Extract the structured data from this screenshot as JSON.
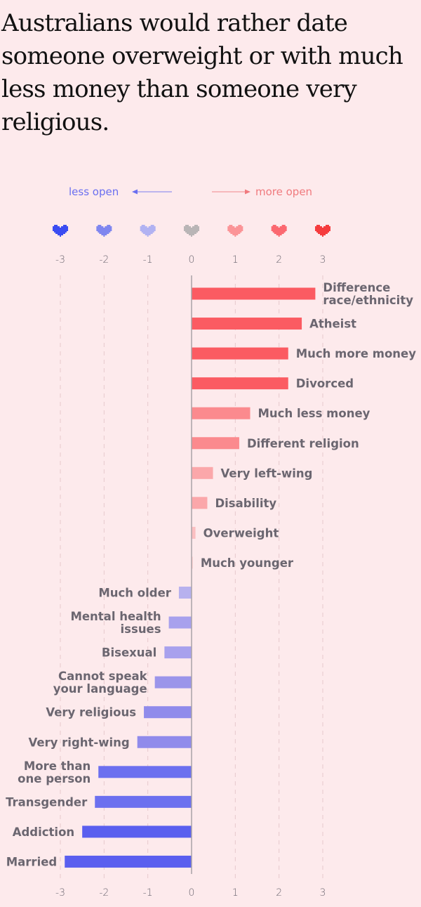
{
  "title": "Australians would rather date someone overweight or with much less money than someone very religious.",
  "legend": {
    "less_open": "less open",
    "more_open": "more open",
    "less_color": "#6a6ff0",
    "more_color": "#f07a7e"
  },
  "hearts": [
    {
      "value": -3,
      "color": "#3a4cf2"
    },
    {
      "value": -2,
      "color": "#7f86ef"
    },
    {
      "value": -1,
      "color": "#b1b2f2"
    },
    {
      "value": 0,
      "color": "#b9b5b6"
    },
    {
      "value": 1,
      "color": "#fb9497"
    },
    {
      "value": 2,
      "color": "#fb6870"
    },
    {
      "value": 3,
      "color": "#f53c3e"
    }
  ],
  "chart_data": {
    "type": "bar",
    "orientation": "horizontal",
    "title": "Australians would rather date someone overweight or with much less money than someone very religious.",
    "xlabel": "",
    "ylabel": "",
    "xlim": [
      -3,
      3
    ],
    "xticks": [
      "-3",
      "-2",
      "-1",
      "0",
      "1",
      "2",
      "3"
    ],
    "grid": true,
    "categories": [
      [
        "Difference",
        "race/ethnicity"
      ],
      [
        "Atheist"
      ],
      [
        "Much more money"
      ],
      [
        "Divorced"
      ],
      [
        "Much less money"
      ],
      [
        "Different religion"
      ],
      [
        "Very left-wing"
      ],
      [
        "Disability"
      ],
      [
        "Overweight"
      ],
      [
        "Much younger"
      ],
      [
        "Much older"
      ],
      [
        "Mental health",
        "issues"
      ],
      [
        "Bisexual"
      ],
      [
        "Cannot speak",
        "your language"
      ],
      [
        "Very religious"
      ],
      [
        "Very right-wing"
      ],
      [
        "More than",
        "one person"
      ],
      [
        "Transgender"
      ],
      [
        "Addiction"
      ],
      [
        "Married"
      ]
    ],
    "values": [
      2.83,
      2.52,
      2.21,
      2.21,
      1.34,
      1.09,
      0.49,
      0.36,
      0.09,
      0.03,
      -0.29,
      -0.52,
      -0.62,
      -0.84,
      -1.09,
      -1.24,
      -2.13,
      -2.21,
      -2.5,
      -2.9
    ],
    "colors": [
      "#fb5b62",
      "#fb5b62",
      "#fb5b62",
      "#fb5b62",
      "#fb8a8e",
      "#fb8a8e",
      "#fba7aa",
      "#fba7aa",
      "#fbbfc1",
      "#fbd0d2",
      "#b7b1ee",
      "#a8a1ed",
      "#a8a1ed",
      "#9b95ea",
      "#908beb",
      "#908beb",
      "#6c70ef",
      "#6c70ef",
      "#5a5fef",
      "#5a5fef"
    ]
  }
}
